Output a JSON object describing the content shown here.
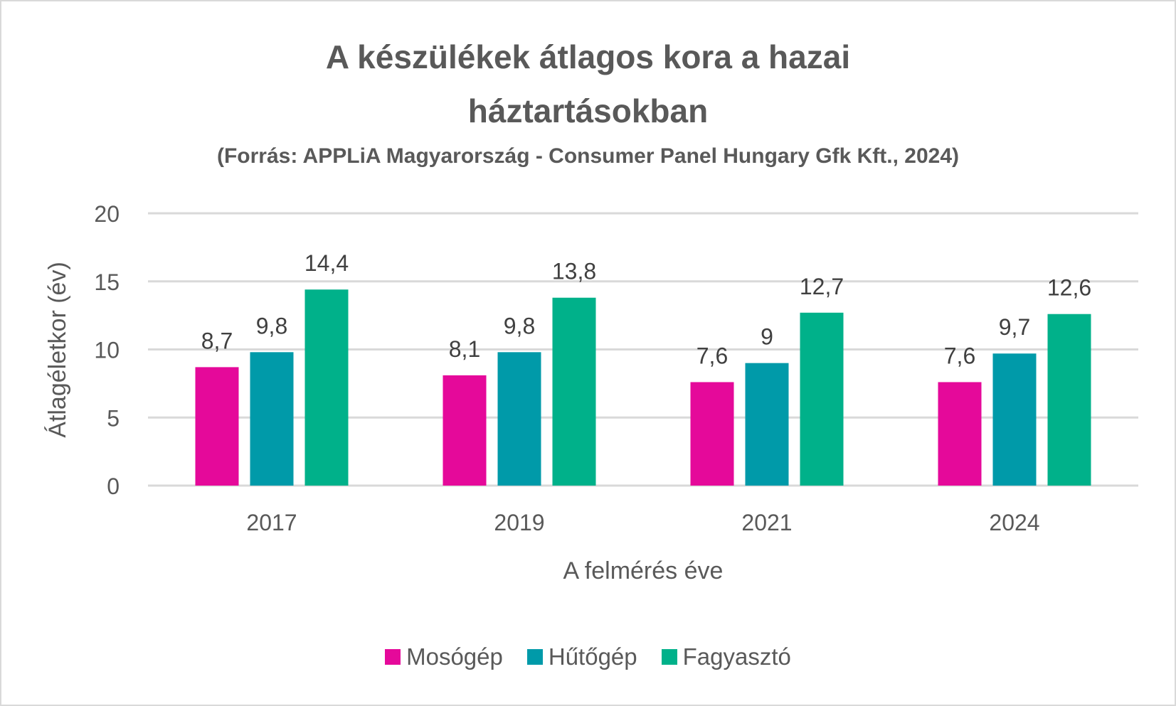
{
  "chart_data": {
    "type": "bar",
    "title": "A készülékek átlagos kora a hazai háztartásokban",
    "title_lines": [
      "A készülékek átlagos kora a hazai",
      "háztartásokban"
    ],
    "subtitle": "(Forrás: APPLiA Magyarország - Consumer Panel Hungary Gfk Kft., 2024)",
    "xlabel": "A felmérés éve",
    "ylabel": "Átlagéletkor (év)",
    "ylim": [
      0,
      20
    ],
    "yticks": [
      0,
      5,
      10,
      15,
      20
    ],
    "grid": true,
    "legend_position": "bottom",
    "categories": [
      "2017",
      "2019",
      "2021",
      "2024"
    ],
    "series": [
      {
        "name": "Mosógép",
        "color": "#e5099a",
        "values": [
          8.7,
          8.1,
          7.6,
          7.6
        ],
        "labels": [
          "8,7",
          "8,1",
          "7,6",
          "7,6"
        ]
      },
      {
        "name": "Hűtőgép",
        "color": "#009aa9",
        "values": [
          9.8,
          9.8,
          9.0,
          9.7
        ],
        "labels": [
          "9,8",
          "9,8",
          "9",
          "9,7"
        ]
      },
      {
        "name": "Fagyasztó",
        "color": "#00b18a",
        "values": [
          14.4,
          13.8,
          12.7,
          12.6
        ],
        "labels": [
          "14,4",
          "13,8",
          "12,7",
          "12,6"
        ]
      }
    ]
  }
}
